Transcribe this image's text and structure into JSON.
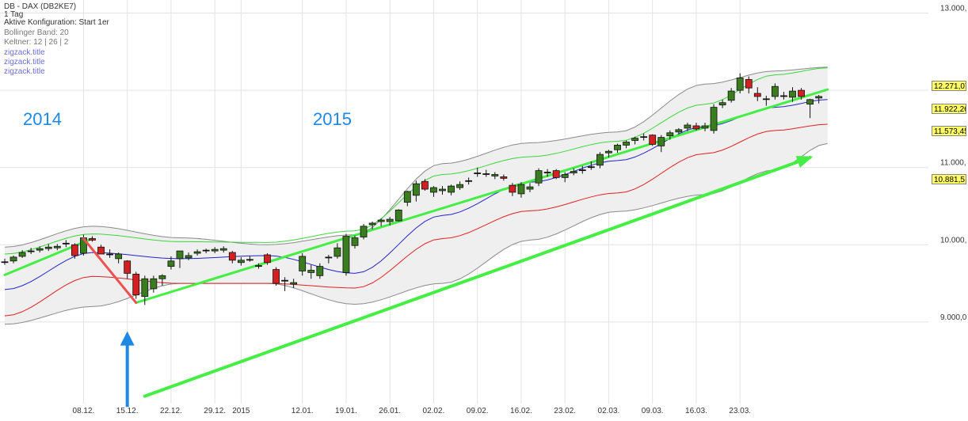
{
  "header": {
    "title": "DB - DAX (DB2KE7)",
    "period": "1 Tag",
    "config": "Aktive Konfiguration: Start 1er",
    "bollinger": "Bollinger Band: 20",
    "keltner": "Keltner: 12 | 26 | 2",
    "zigzag": [
      "zigzack.title",
      "zigzack.title",
      "zigzack.title"
    ]
  },
  "annotations": {
    "year_2014": "2014",
    "year_2015": "2015"
  },
  "price_tags": {
    "upper": "12.271,07",
    "last": "11.922,26",
    "middle": "11.573,45",
    "lower": "10.881,5"
  },
  "colors": {
    "up_candle": "#3a7d1f",
    "down_candle": "#d42020",
    "bollinger_fill": "#efefef",
    "bollinger_edge": "#8a8a8a",
    "keltner_upper": "#3bd63b",
    "keltner_middle": "#2323c8",
    "keltner_lower": "#e02020",
    "trend_line": "#44ee44",
    "zigzag": "#f05050",
    "arrow": "#1e88e5"
  },
  "chart_data": {
    "type": "candlestick",
    "title": "DB - DAX (DB2KE7)",
    "ylim": [
      8700,
      13100
    ],
    "yticks": [
      9000,
      10000,
      11000,
      12000,
      13000
    ],
    "ytick_labels": [
      "9.000,0",
      "10.000,",
      "11.000,",
      "12.000,",
      "13.000,"
    ],
    "xtick_labels": [
      {
        "label": "08.12.",
        "index": 9
      },
      {
        "label": "15.12.",
        "index": 14
      },
      {
        "label": "22.12.",
        "index": 19
      },
      {
        "label": "29.12.",
        "index": 24
      },
      {
        "label": "2015",
        "index": 27
      },
      {
        "label": "12.01.",
        "index": 34
      },
      {
        "label": "19.01.",
        "index": 39
      },
      {
        "label": "26.01.",
        "index": 44
      },
      {
        "label": "02.02.",
        "index": 49
      },
      {
        "label": "09.02.",
        "index": 54
      },
      {
        "label": "16.02.",
        "index": 59
      },
      {
        "label": "23.02.",
        "index": 64
      },
      {
        "label": "02.03.",
        "index": 69
      },
      {
        "label": "09.03.",
        "index": 74
      },
      {
        "label": "16.03.",
        "index": 79
      },
      {
        "label": "23.03.",
        "index": 84
      }
    ],
    "candles": [
      [
        9770,
        9820,
        9740,
        9780
      ],
      [
        9790,
        9860,
        9760,
        9840
      ],
      [
        9850,
        9930,
        9830,
        9900
      ],
      [
        9910,
        9960,
        9880,
        9920
      ],
      [
        9930,
        9980,
        9900,
        9950
      ],
      [
        9950,
        10010,
        9920,
        9970
      ],
      [
        9960,
        10010,
        9930,
        9980
      ],
      [
        10010,
        10060,
        9970,
        10020
      ],
      [
        10000,
        10020,
        9820,
        9860
      ],
      [
        9890,
        10130,
        9860,
        10090
      ],
      [
        10080,
        10110,
        10040,
        10060
      ],
      [
        9970,
        10000,
        9880,
        9880
      ],
      [
        9880,
        9940,
        9830,
        9870
      ],
      [
        9820,
        9900,
        9760,
        9880
      ],
      [
        9790,
        9800,
        9560,
        9630
      ],
      [
        9620,
        9650,
        9300,
        9350
      ],
      [
        9330,
        9600,
        9220,
        9560
      ],
      [
        9430,
        9600,
        9380,
        9560
      ],
      [
        9560,
        9620,
        9470,
        9600
      ],
      [
        9720,
        9850,
        9680,
        9790
      ],
      [
        9820,
        9920,
        9700,
        9920
      ],
      [
        9830,
        9900,
        9800,
        9860
      ],
      [
        9890,
        9940,
        9860,
        9910
      ],
      [
        9920,
        9950,
        9890,
        9930
      ],
      [
        9920,
        9970,
        9890,
        9940
      ],
      [
        9930,
        9980,
        9900,
        9950
      ],
      [
        9900,
        9920,
        9760,
        9800
      ],
      [
        9770,
        9840,
        9730,
        9800
      ],
      [
        9810,
        9850,
        9780,
        9810
      ],
      [
        9730,
        9760,
        9690,
        9730
      ],
      [
        9870,
        9890,
        9740,
        9770
      ],
      [
        9680,
        9710,
        9470,
        9500
      ],
      [
        9540,
        9580,
        9400,
        9530
      ],
      [
        9490,
        9560,
        9440,
        9510
      ],
      [
        9660,
        9890,
        9600,
        9850
      ],
      [
        9640,
        9740,
        9560,
        9670
      ],
      [
        9600,
        9760,
        9560,
        9720
      ],
      [
        9840,
        9870,
        9760,
        9830
      ],
      [
        9850,
        10020,
        9820,
        9960
      ],
      [
        9640,
        10140,
        9600,
        10110
      ],
      [
        9990,
        10120,
        9950,
        10090
      ],
      [
        10100,
        10270,
        10070,
        10240
      ],
      [
        10260,
        10300,
        10200,
        10280
      ],
      [
        10300,
        10340,
        10240,
        10320
      ],
      [
        10300,
        10360,
        10250,
        10330
      ],
      [
        10310,
        10460,
        10300,
        10450
      ],
      [
        10550,
        10700,
        10500,
        10690
      ],
      [
        10640,
        10830,
        10560,
        10790
      ],
      [
        10820,
        10850,
        10700,
        10720
      ],
      [
        10680,
        10760,
        10620,
        10740
      ],
      [
        10700,
        10760,
        10650,
        10720
      ],
      [
        10680,
        10780,
        10640,
        10760
      ],
      [
        10740,
        10820,
        10710,
        10780
      ],
      [
        10830,
        10870,
        10780,
        10820
      ],
      [
        10930,
        11000,
        10880,
        10930
      ],
      [
        10910,
        10970,
        10880,
        10920
      ],
      [
        10890,
        10940,
        10850,
        10910
      ],
      [
        10880,
        10910,
        10830,
        10860
      ],
      [
        10770,
        10800,
        10630,
        10680
      ],
      [
        10660,
        10810,
        10610,
        10780
      ],
      [
        10720,
        10800,
        10680,
        10750
      ],
      [
        10800,
        10990,
        10760,
        10960
      ],
      [
        10940,
        10980,
        10880,
        10930
      ],
      [
        10960,
        10980,
        10850,
        10870
      ],
      [
        10870,
        10940,
        10810,
        10910
      ],
      [
        10930,
        10990,
        10900,
        10950
      ],
      [
        10970,
        11020,
        10920,
        10960
      ],
      [
        11000,
        11080,
        10970,
        11010
      ],
      [
        11030,
        11200,
        10990,
        11170
      ],
      [
        11190,
        11230,
        11130,
        11210
      ],
      [
        11230,
        11310,
        11190,
        11290
      ],
      [
        11290,
        11350,
        11250,
        11330
      ],
      [
        11350,
        11400,
        11300,
        11380
      ],
      [
        11390,
        11440,
        11350,
        11400
      ],
      [
        11420,
        11430,
        11280,
        11300
      ],
      [
        11280,
        11420,
        11200,
        11390
      ],
      [
        11410,
        11480,
        11360,
        11450
      ],
      [
        11460,
        11510,
        11430,
        11490
      ],
      [
        11510,
        11580,
        11470,
        11550
      ],
      [
        11540,
        11580,
        11480,
        11500
      ],
      [
        11510,
        11580,
        11470,
        11540
      ],
      [
        11480,
        11820,
        11440,
        11780
      ],
      [
        11810,
        11880,
        11770,
        11840
      ],
      [
        11870,
        12030,
        11840,
        11990
      ],
      [
        12000,
        12220,
        11960,
        12160
      ],
      [
        12140,
        12180,
        11960,
        12030
      ],
      [
        11960,
        12040,
        11860,
        11920
      ],
      [
        11890,
        11930,
        11800,
        11880
      ],
      [
        11920,
        12090,
        11880,
        12050
      ],
      [
        11930,
        11980,
        11880,
        11920
      ],
      [
        11910,
        12040,
        11850,
        11990
      ],
      [
        12000,
        12030,
        11880,
        11920
      ],
      [
        11820,
        11890,
        11640,
        11880
      ],
      [
        11900,
        11940,
        11830,
        11920
      ]
    ],
    "indicators": {
      "bollinger_upper": [
        [
          0,
          9970
        ],
        [
          10,
          10240
        ],
        [
          20,
          10090
        ],
        [
          30,
          10000
        ],
        [
          40,
          10130
        ],
        [
          50,
          11050
        ],
        [
          60,
          11320
        ],
        [
          70,
          11460
        ],
        [
          80,
          12080
        ],
        [
          88,
          12250
        ],
        [
          94,
          12300
        ]
      ],
      "bollinger_lower": [
        [
          0,
          8970
        ],
        [
          10,
          9200
        ],
        [
          20,
          9500
        ],
        [
          30,
          9500
        ],
        [
          40,
          9230
        ],
        [
          50,
          9500
        ],
        [
          60,
          10060
        ],
        [
          70,
          10430
        ],
        [
          80,
          10650
        ],
        [
          88,
          10970
        ],
        [
          94,
          11310
        ]
      ],
      "keltner_upper": [
        [
          0,
          9880
        ],
        [
          10,
          10140
        ],
        [
          20,
          10040
        ],
        [
          30,
          10030
        ],
        [
          40,
          10180
        ],
        [
          50,
          10910
        ],
        [
          60,
          11140
        ],
        [
          70,
          11340
        ],
        [
          80,
          11820
        ],
        [
          88,
          12200
        ],
        [
          94,
          12290
        ]
      ],
      "keltner_middle": [
        [
          0,
          9420
        ],
        [
          10,
          9900
        ],
        [
          20,
          9820
        ],
        [
          30,
          9860
        ],
        [
          40,
          9630
        ],
        [
          50,
          10380
        ],
        [
          60,
          10810
        ],
        [
          70,
          11090
        ],
        [
          80,
          11530
        ],
        [
          88,
          11780
        ],
        [
          94,
          11880
        ]
      ],
      "keltner_lower": [
        [
          0,
          9080
        ],
        [
          10,
          9590
        ],
        [
          20,
          9500
        ],
        [
          30,
          9500
        ],
        [
          40,
          9440
        ],
        [
          50,
          10080
        ],
        [
          60,
          10440
        ],
        [
          70,
          10670
        ],
        [
          80,
          11180
        ],
        [
          88,
          11480
        ],
        [
          94,
          11560
        ]
      ]
    },
    "trend_lines": [
      {
        "from": [
          0,
          9610
        ],
        "to": [
          10,
          10080
        ]
      },
      {
        "from": [
          15,
          9250
        ],
        "to": [
          94,
          12010
        ]
      },
      {
        "from": [
          16,
          8040
        ],
        "to": [
          92,
          11130
        ]
      }
    ],
    "zigzag": [
      [
        9,
        10080
      ],
      [
        15,
        9250
      ]
    ],
    "arrow": {
      "index": 14,
      "from_value": 7900,
      "to_value": 8880
    }
  }
}
